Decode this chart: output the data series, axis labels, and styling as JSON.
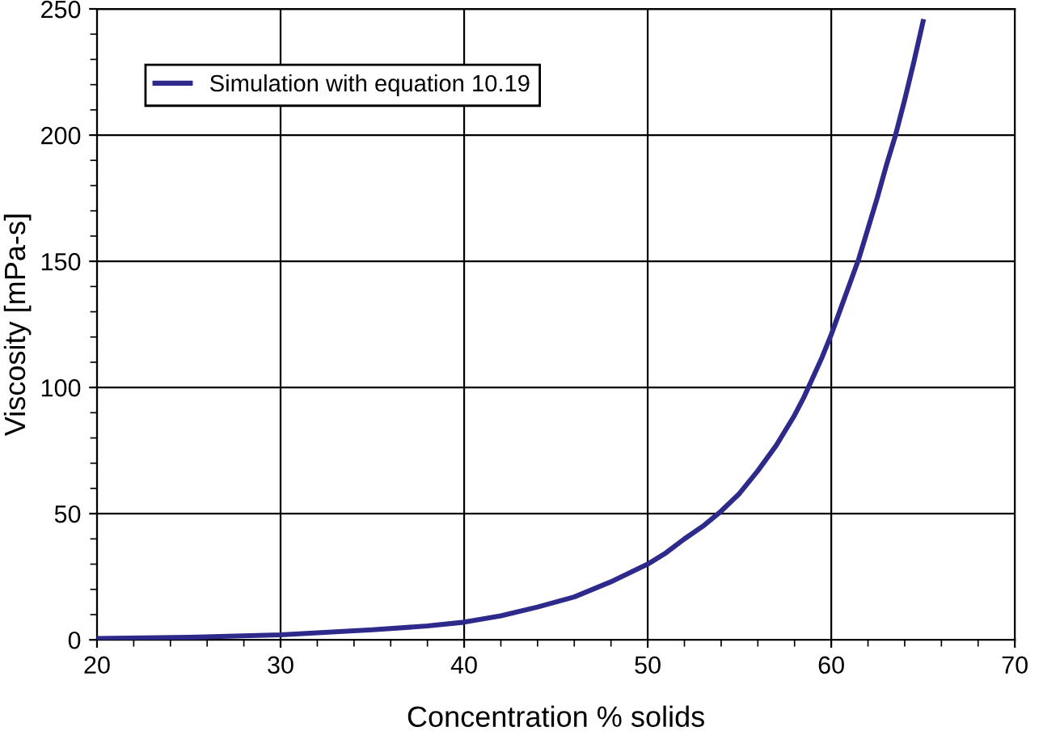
{
  "chart_data": {
    "type": "line",
    "xlabel": "Concentration % solids",
    "ylabel": "Viscosity [mPa-s]",
    "series": [
      {
        "name": "Simulation with equation 10.19",
        "color": "#2e2a8c",
        "x": [
          20,
          25,
          30,
          35,
          38,
          40,
          42,
          44,
          46,
          48,
          50,
          51,
          52,
          53,
          54,
          55,
          56,
          57,
          58,
          58.5,
          59,
          59.5,
          60,
          60.5,
          61,
          61.5,
          62,
          62.5,
          63,
          63.5,
          64,
          64.5,
          65
        ],
        "values": [
          0.5,
          1,
          2,
          4,
          5.5,
          7,
          9.5,
          13,
          17,
          23,
          30,
          34.5,
          40,
          45,
          51,
          58,
          67,
          77,
          89,
          96,
          104,
          112,
          121,
          131,
          141,
          151,
          163,
          175,
          188,
          200,
          214,
          229,
          245
        ]
      }
    ],
    "xlim": [
      20,
      70
    ],
    "ylim": [
      0,
      250
    ],
    "xticks": [
      20,
      30,
      40,
      50,
      60,
      70
    ],
    "yticks": [
      0,
      50,
      100,
      150,
      200,
      250
    ],
    "grid": true,
    "legend": "top left",
    "marker": "none",
    "line_style": "solid"
  }
}
